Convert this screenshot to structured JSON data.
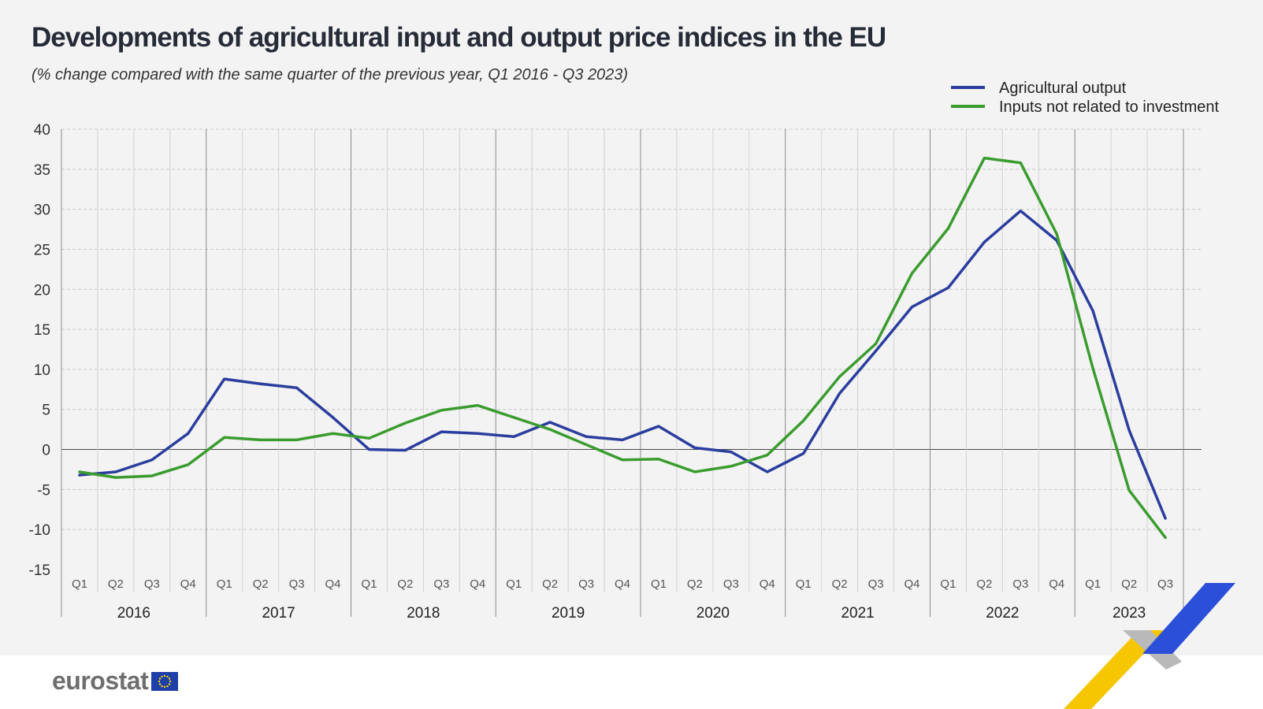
{
  "title": "Developments of agricultural input and output price indices in the EU",
  "subtitle": "(% change compared with the same quarter of the previous year,  Q1 2016 - Q3 2023)",
  "brand": {
    "name": "eurostat"
  },
  "colors": {
    "output": "#2b3e9e",
    "inputs": "#3a9c2e",
    "background": "#f3f3f3"
  },
  "chart_data": {
    "type": "line",
    "title": "Developments of agricultural input and output price indices in the EU",
    "xlabel": "",
    "ylabel": "",
    "ylim": [
      -15,
      40
    ],
    "yticks": [
      40,
      35,
      30,
      25,
      20,
      15,
      10,
      5,
      0,
      -5,
      -10,
      -15
    ],
    "grid": true,
    "legend_position": "top-right",
    "quarters": [
      "Q1",
      "Q2",
      "Q3",
      "Q4",
      "Q1",
      "Q2",
      "Q3",
      "Q4",
      "Q1",
      "Q2",
      "Q3",
      "Q4",
      "Q1",
      "Q2",
      "Q3",
      "Q4",
      "Q1",
      "Q2",
      "Q3",
      "Q4",
      "Q1",
      "Q2",
      "Q3",
      "Q4",
      "Q1",
      "Q2",
      "Q3",
      "Q4",
      "Q1",
      "Q2",
      "Q3"
    ],
    "years": [
      {
        "label": "2016",
        "start": 0,
        "count": 4
      },
      {
        "label": "2017",
        "start": 4,
        "count": 4
      },
      {
        "label": "2018",
        "start": 8,
        "count": 4
      },
      {
        "label": "2019",
        "start": 12,
        "count": 4
      },
      {
        "label": "2020",
        "start": 16,
        "count": 4
      },
      {
        "label": "2021",
        "start": 20,
        "count": 4
      },
      {
        "label": "2022",
        "start": 24,
        "count": 4
      },
      {
        "label": "2023",
        "start": 28,
        "count": 3
      }
    ],
    "series": [
      {
        "name": "Agricultural output",
        "color": "#2b3e9e",
        "values": [
          -3.2,
          -2.8,
          -1.3,
          2.0,
          8.8,
          8.2,
          7.7,
          4.0,
          0.0,
          -0.1,
          2.2,
          2.0,
          1.6,
          3.4,
          1.6,
          1.2,
          2.9,
          0.2,
          -0.3,
          -2.8,
          -0.5,
          7.0,
          12.3,
          17.8,
          20.2,
          25.9,
          29.8,
          26.1,
          17.3,
          2.4,
          -8.6
        ]
      },
      {
        "name": "Inputs not related to investment",
        "color": "#3a9c2e",
        "values": [
          -2.8,
          -3.5,
          -3.3,
          -1.9,
          1.5,
          1.2,
          1.2,
          2.0,
          1.4,
          3.3,
          4.9,
          5.5,
          4.0,
          2.5,
          0.6,
          -1.3,
          -1.2,
          -2.8,
          -2.1,
          -0.7,
          3.6,
          9.1,
          13.2,
          22.0,
          27.6,
          36.4,
          35.8,
          26.9,
          10.1,
          -5.1,
          -11.0
        ]
      }
    ]
  }
}
